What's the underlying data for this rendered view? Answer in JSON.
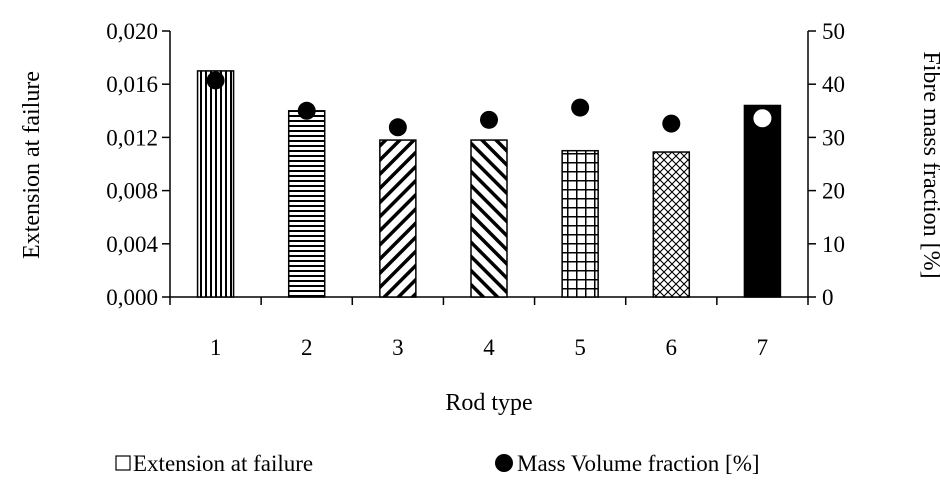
{
  "chart_data": {
    "type": "bar",
    "categories": [
      "1",
      "2",
      "3",
      "4",
      "5",
      "6",
      "7"
    ],
    "series": [
      {
        "name": "Extension at failure",
        "kind": "bar",
        "axis": "left",
        "values": [
          0.017,
          0.014,
          0.0118,
          0.0118,
          0.011,
          0.0109,
          0.0144
        ],
        "patterns": [
          "vertical-lines",
          "horizontal-lines",
          "diagonal-up",
          "diagonal-down",
          "grid",
          "crosshatch",
          "solid"
        ]
      },
      {
        "name": "Mass Volume fraction [%]",
        "kind": "scatter",
        "axis": "right",
        "values": [
          40.7,
          35.0,
          31.9,
          33.3,
          35.6,
          32.6,
          33.6
        ],
        "marker": "filled-circle"
      }
    ],
    "xlabel": "Rod type",
    "ylabel": "Extension at failure",
    "y2label": "Fibre mass fraction [%]",
    "ylim": [
      0,
      0.02
    ],
    "y2lim": [
      0,
      50
    ],
    "yticks": [
      "0,000",
      "0,004",
      "0,008",
      "0,012",
      "0,016",
      "0,020"
    ],
    "y2ticks": [
      "0",
      "10",
      "20",
      "30",
      "40",
      "50"
    ],
    "grid": false,
    "legend_position": "bottom",
    "colors": {
      "ink": "#000000",
      "background": "#ffffff",
      "marker_on_dark": "#ffffff"
    }
  }
}
